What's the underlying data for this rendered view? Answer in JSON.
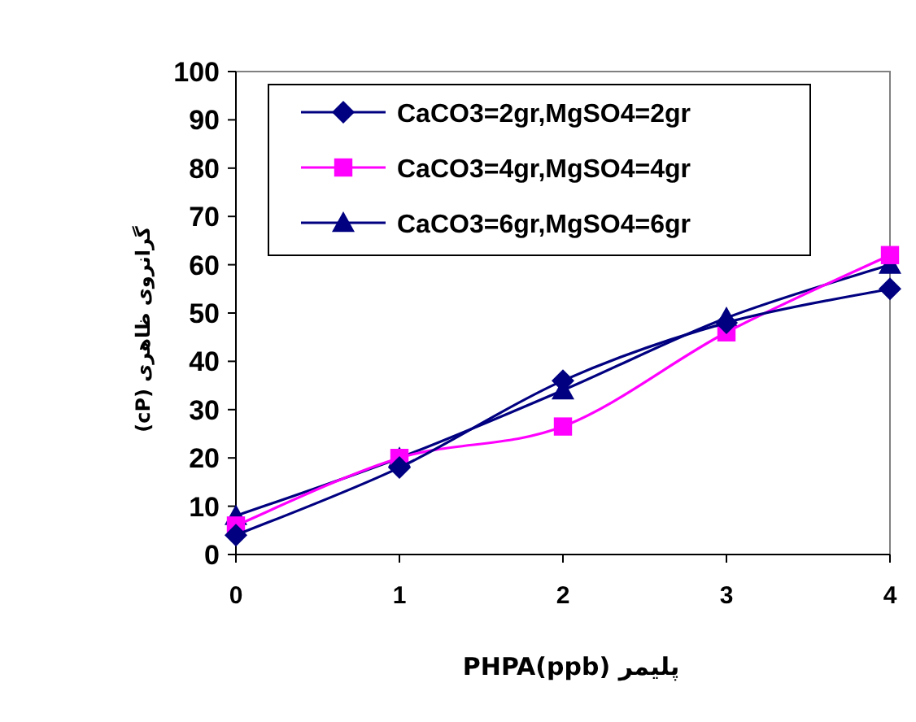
{
  "chart_data": {
    "type": "line",
    "xlabel": "پلیمر PHPA(ppb)",
    "ylabel": "گرانروی ظاهری (cP)",
    "x": [
      0,
      1,
      2,
      3,
      4
    ],
    "series": [
      {
        "name": "CaCO3=2gr,MgSO4=2gr",
        "color": "#000080",
        "marker": "diamond",
        "values": [
          4,
          18,
          36,
          48,
          55
        ]
      },
      {
        "name": "CaCO3=4gr,MgSO4=4gr",
        "color": "#ff00ff",
        "marker": "square",
        "values": [
          6,
          20,
          26.5,
          46,
          62
        ]
      },
      {
        "name": "CaCO3=6gr,MgSO4=6gr",
        "color": "#000080",
        "marker": "triangle",
        "values": [
          8,
          20,
          34,
          49,
          60
        ]
      }
    ],
    "xlim": [
      0,
      4
    ],
    "xticks": [
      0,
      1,
      2,
      3,
      4
    ],
    "ylim": [
      0,
      100
    ],
    "yticks": [
      0,
      10,
      20,
      30,
      40,
      50,
      60,
      70,
      80,
      90,
      100
    ],
    "grid": false,
    "legend": "top left"
  }
}
